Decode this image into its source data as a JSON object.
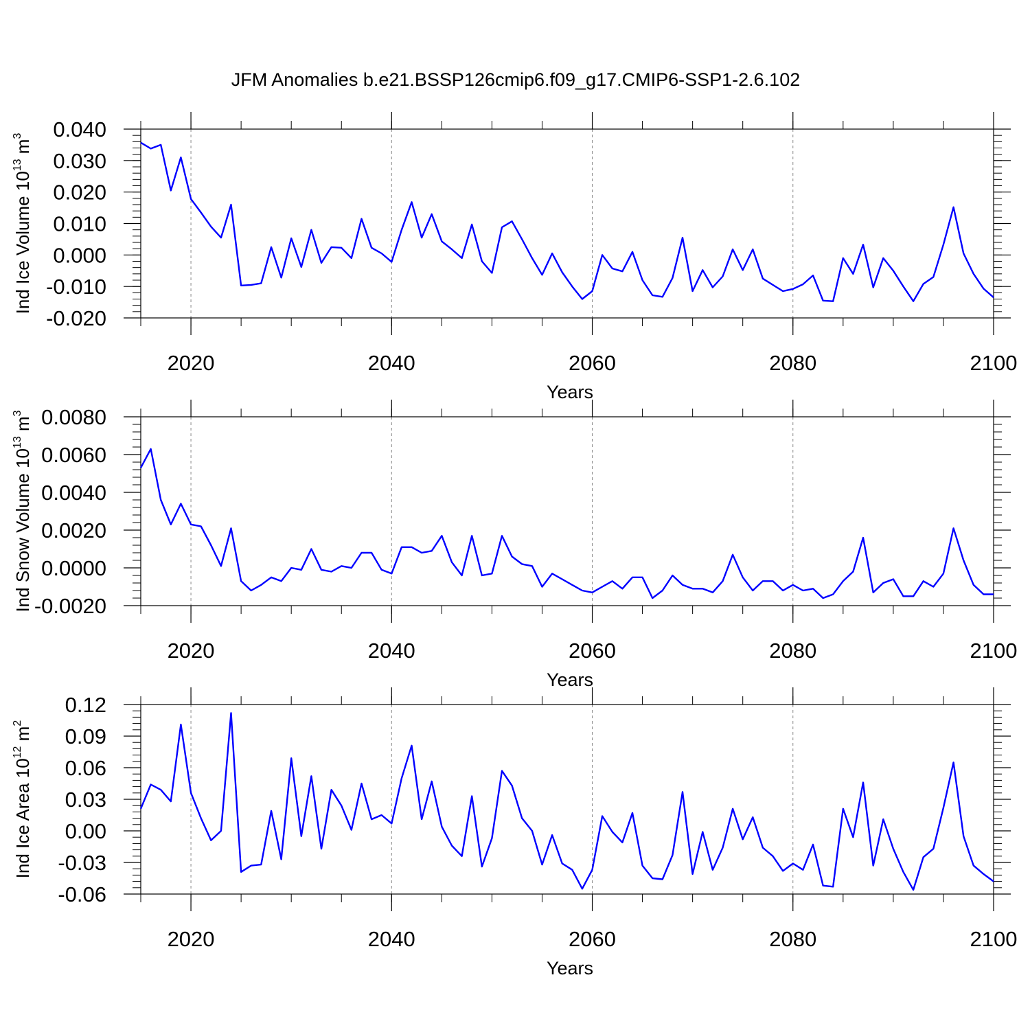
{
  "title": "JFM Anomalies b.e21.BSSP126cmip6.f09_g17.CMIP6-SSP1-2.6.102",
  "colors": {
    "line": "#0000ff",
    "axis": "#000000",
    "grid": "#888888"
  },
  "chart_data": [
    {
      "type": "line",
      "xlabel": "Years",
      "ylabel": {
        "prefix": "Ind Ice Volume 10",
        "exp": "13",
        "unit": " m",
        "unit_exp": "3"
      },
      "xlim": [
        2015,
        2100
      ],
      "ylim": [
        -0.02,
        0.04
      ],
      "yticks": [
        "0.040",
        "0.030",
        "0.020",
        "0.010",
        "0.000",
        "-0.010",
        "-0.020"
      ],
      "ytick_values": [
        0.04,
        0.03,
        0.02,
        0.01,
        0.0,
        -0.01,
        -0.02
      ],
      "xticks": [
        "2020",
        "2040",
        "2060",
        "2080",
        "2100"
      ],
      "xtick_values": [
        2020,
        2040,
        2060,
        2080,
        2100
      ],
      "grid": "dashed vertical at major x ticks",
      "series": [
        {
          "x_start": 2015,
          "x_step": 1,
          "values": [
            0.0357,
            0.0338,
            0.035,
            0.0205,
            0.031,
            0.0178,
            0.0135,
            0.009,
            0.0055,
            0.016,
            -0.0097,
            -0.0095,
            -0.009,
            0.0025,
            -0.0072,
            0.0053,
            -0.0038,
            0.008,
            -0.0025,
            0.0025,
            0.0023,
            -0.001,
            0.0115,
            0.0023,
            0.0005,
            -0.0022,
            0.008,
            0.0168,
            0.0055,
            0.013,
            0.0043,
            0.0018,
            -0.001,
            0.0097,
            -0.002,
            -0.0057,
            0.0088,
            0.0107,
            0.005,
            -0.001,
            -0.0063,
            0.0005,
            -0.0055,
            -0.01,
            -0.014,
            -0.0115,
            0.0,
            -0.0043,
            -0.0052,
            0.001,
            -0.008,
            -0.0128,
            -0.0133,
            -0.0073,
            0.0055,
            -0.0115,
            -0.0048,
            -0.0103,
            -0.0068,
            0.0018,
            -0.0048,
            0.0018,
            -0.0075,
            -0.0095,
            -0.0115,
            -0.0108,
            -0.0093,
            -0.0065,
            -0.0145,
            -0.0147,
            -0.001,
            -0.006,
            0.0033,
            -0.0103,
            -0.001,
            -0.005,
            -0.01,
            -0.0147,
            -0.0092,
            -0.007,
            0.0033,
            0.0152,
            0.0005,
            -0.006,
            -0.0107,
            -0.0135
          ]
        }
      ]
    },
    {
      "type": "line",
      "xlabel": "Years",
      "ylabel": {
        "prefix": "Ind Snow Volume 10",
        "exp": "13",
        "unit": " m",
        "unit_exp": "3"
      },
      "xlim": [
        2015,
        2100
      ],
      "ylim": [
        -0.002,
        0.008
      ],
      "yticks": [
        "0.0080",
        "0.0060",
        "0.0040",
        "0.0020",
        "0.0000",
        "-0.0020"
      ],
      "ytick_values": [
        0.008,
        0.006,
        0.004,
        0.002,
        0.0,
        -0.002
      ],
      "xticks": [
        "2020",
        "2040",
        "2060",
        "2080",
        "2100"
      ],
      "xtick_values": [
        2020,
        2040,
        2060,
        2080,
        2100
      ],
      "grid": "dashed vertical at major x ticks",
      "series": [
        {
          "x_start": 2015,
          "x_step": 1,
          "values": [
            0.0053,
            0.0063,
            0.0036,
            0.0023,
            0.0034,
            0.0023,
            0.0022,
            0.0012,
            0.0001,
            0.0021,
            -0.0007,
            -0.0012,
            -0.0009,
            -0.0005,
            -0.0007,
            0.0,
            -0.0001,
            0.001,
            -0.0001,
            -0.0002,
            0.0001,
            0.0,
            0.0008,
            0.0008,
            -0.0001,
            -0.0003,
            0.0011,
            0.0011,
            0.0008,
            0.0009,
            0.0017,
            0.0003,
            -0.0004,
            0.0017,
            -0.0004,
            -0.0003,
            0.0017,
            0.0006,
            0.0002,
            0.0001,
            -0.001,
            -0.0003,
            -0.0006,
            -0.0009,
            -0.0012,
            -0.0013,
            -0.001,
            -0.0007,
            -0.0011,
            -0.0005,
            -0.0005,
            -0.0016,
            -0.0012,
            -0.0004,
            -0.0009,
            -0.0011,
            -0.0011,
            -0.0013,
            -0.0007,
            0.0007,
            -0.0005,
            -0.0012,
            -0.0007,
            -0.0007,
            -0.0012,
            -0.0009,
            -0.0012,
            -0.0011,
            -0.0016,
            -0.0014,
            -0.0007,
            -0.0002,
            0.0016,
            -0.0013,
            -0.0008,
            -0.0006,
            -0.0015,
            -0.0015,
            -0.0007,
            -0.001,
            -0.0003,
            0.0021,
            0.0004,
            -0.0009,
            -0.0014,
            -0.0014
          ]
        }
      ]
    },
    {
      "type": "line",
      "xlabel": "Years",
      "ylabel": {
        "prefix": "Ind Ice Area 10",
        "exp": "12",
        "unit": " m",
        "unit_exp": "2"
      },
      "xlim": [
        2015,
        2100
      ],
      "ylim": [
        -0.06,
        0.12
      ],
      "yticks": [
        "0.12",
        "0.09",
        "0.06",
        "0.03",
        "0.00",
        "-0.03",
        "-0.06"
      ],
      "ytick_values": [
        0.12,
        0.09,
        0.06,
        0.03,
        0.0,
        -0.03,
        -0.06
      ],
      "xticks": [
        "2020",
        "2040",
        "2060",
        "2080",
        "2100"
      ],
      "xtick_values": [
        2020,
        2040,
        2060,
        2080,
        2100
      ],
      "grid": "dashed vertical at major x ticks",
      "series": [
        {
          "x_start": 2015,
          "x_step": 1,
          "values": [
            0.021,
            0.044,
            0.039,
            0.028,
            0.101,
            0.036,
            0.012,
            -0.009,
            0.0,
            0.112,
            -0.039,
            -0.033,
            -0.032,
            0.019,
            -0.027,
            0.069,
            -0.005,
            0.052,
            -0.017,
            0.039,
            0.024,
            0.001,
            0.045,
            0.011,
            0.015,
            0.007,
            0.05,
            0.081,
            0.011,
            0.047,
            0.004,
            -0.014,
            -0.024,
            0.033,
            -0.034,
            -0.007,
            0.057,
            0.043,
            0.012,
            0.0,
            -0.032,
            -0.004,
            -0.031,
            -0.037,
            -0.055,
            -0.037,
            0.014,
            -0.001,
            -0.011,
            0.017,
            -0.033,
            -0.045,
            -0.046,
            -0.023,
            0.037,
            -0.041,
            -0.001,
            -0.037,
            -0.016,
            0.021,
            -0.008,
            0.013,
            -0.016,
            -0.024,
            -0.038,
            -0.031,
            -0.037,
            -0.013,
            -0.052,
            -0.053,
            0.021,
            -0.006,
            0.046,
            -0.033,
            0.011,
            -0.017,
            -0.039,
            -0.056,
            -0.025,
            -0.017,
            0.022,
            0.065,
            -0.005,
            -0.033,
            -0.041,
            -0.048
          ]
        }
      ]
    }
  ]
}
